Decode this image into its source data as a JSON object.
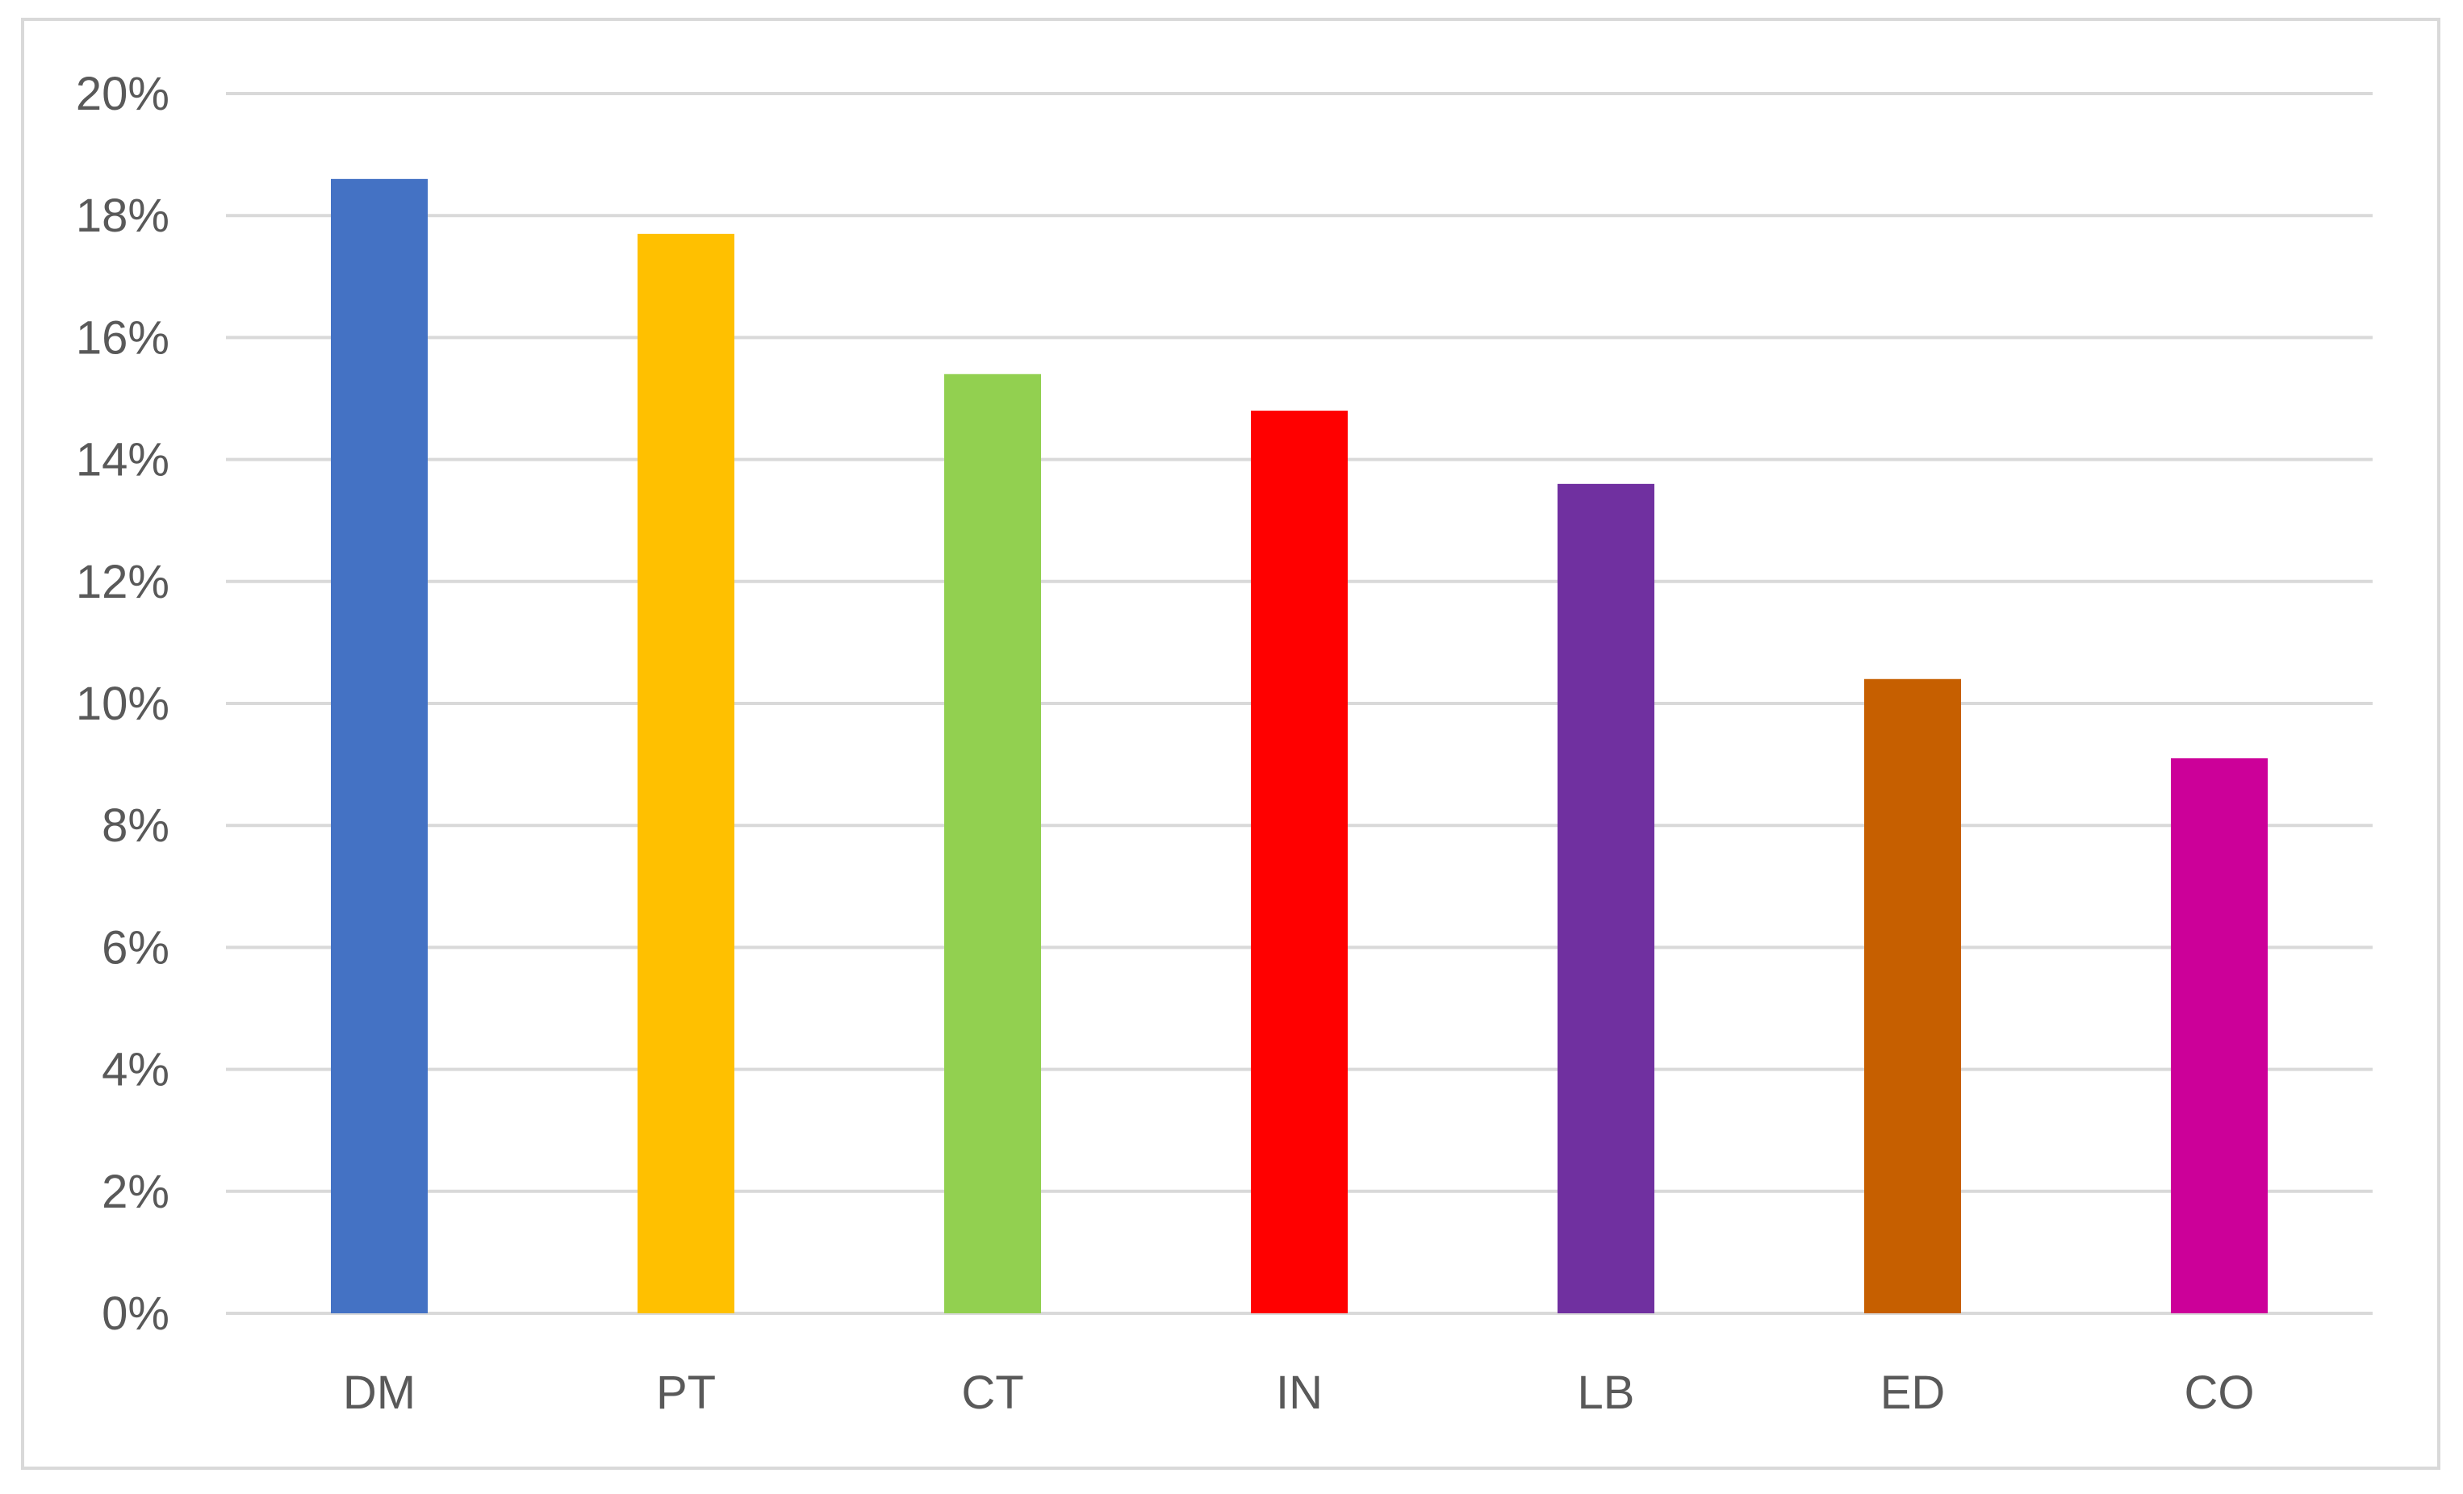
{
  "chart_data": {
    "type": "bar",
    "title": "",
    "xlabel": "",
    "ylabel": "",
    "categories": [
      "DM",
      "PT",
      "CT",
      "IN",
      "LB",
      "ED",
      "CO"
    ],
    "values": [
      18.6,
      17.7,
      15.4,
      14.8,
      13.6,
      10.4,
      9.1
    ],
    "colors": [
      "#4472C4",
      "#FFC000",
      "#92D050",
      "#FF0000",
      "#7030A0",
      "#C65F00",
      "#CC0099"
    ],
    "ylim": [
      0,
      20
    ],
    "y_ticks": [
      0,
      2,
      4,
      6,
      8,
      10,
      12,
      14,
      16,
      18,
      20
    ],
    "y_tick_labels": [
      "0%",
      "2%",
      "4%",
      "6%",
      "8%",
      "10%",
      "12%",
      "14%",
      "16%",
      "18%",
      "20%"
    ],
    "grid": true,
    "gridline_color": "#d9d9d9",
    "legend": "none"
  }
}
